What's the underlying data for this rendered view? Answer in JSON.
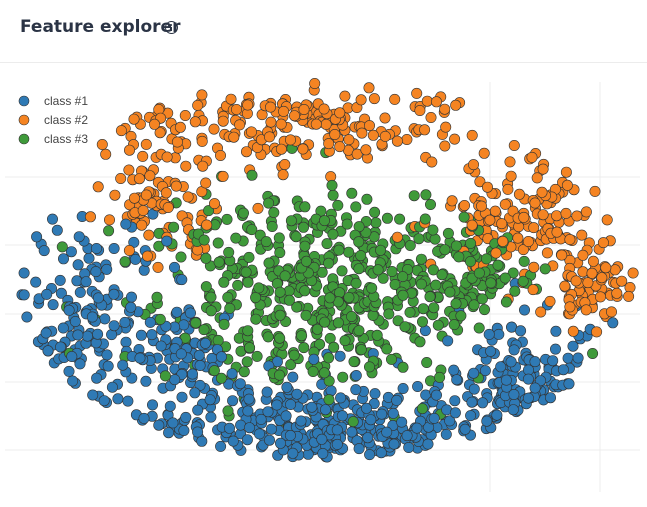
{
  "header": {
    "title": "Feature explorer",
    "info_icon": "info-icon"
  },
  "colors": {
    "class1": "#2f7ab5",
    "class2": "#f58422",
    "class3": "#3f9a3a",
    "grid": "#ececec",
    "outline": "#333333"
  },
  "chart_data": {
    "type": "scatter",
    "title": "",
    "xlabel": "",
    "ylabel": "",
    "grid": true,
    "legend_position": "top-left",
    "xlim": [
      0,
      647
    ],
    "ylim": [
      0,
      420
    ],
    "series": [
      {
        "name": "class #1",
        "color": "#2f7ab5",
        "n_points": 700,
        "regions": [
          {
            "cx": 90,
            "cy": 235,
            "rx": 70,
            "ry": 90,
            "share": 0.22
          },
          {
            "cx": 320,
            "cy": 350,
            "rx": 180,
            "ry": 55,
            "share": 0.48
          },
          {
            "cx": 530,
            "cy": 300,
            "rx": 80,
            "ry": 55,
            "share": 0.2
          },
          {
            "cx": 180,
            "cy": 270,
            "rx": 45,
            "ry": 40,
            "share": 0.1
          }
        ]
      },
      {
        "name": "class #2",
        "color": "#f58422",
        "n_points": 520,
        "regions": [
          {
            "cx": 300,
            "cy": 40,
            "rx": 170,
            "ry": 35,
            "share": 0.4
          },
          {
            "cx": 160,
            "cy": 115,
            "rx": 50,
            "ry": 50,
            "share": 0.18
          },
          {
            "cx": 520,
            "cy": 130,
            "rx": 75,
            "ry": 55,
            "share": 0.27
          },
          {
            "cx": 590,
            "cy": 195,
            "rx": 40,
            "ry": 40,
            "share": 0.15
          }
        ]
      },
      {
        "name": "class #3",
        "color": "#3f9a3a",
        "n_points": 620,
        "regions": [
          {
            "cx": 320,
            "cy": 210,
            "rx": 150,
            "ry": 90,
            "share": 0.85
          },
          {
            "cx": 460,
            "cy": 185,
            "rx": 60,
            "ry": 45,
            "share": 0.15
          }
        ]
      }
    ]
  }
}
